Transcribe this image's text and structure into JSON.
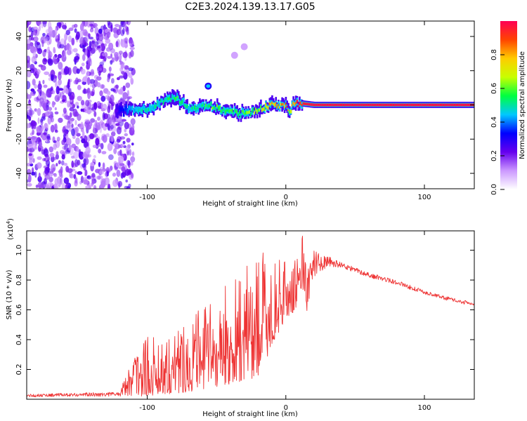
{
  "figure": {
    "title": "C2E3.2024.139.13.17.G05"
  },
  "chart_data": [
    {
      "type": "heatmap",
      "xlabel": "Height of straight line (km)",
      "ylabel": "Frequency (Hz)",
      "xlim": [
        -187,
        136
      ],
      "ylim": [
        -49,
        49
      ],
      "x_ticks": [
        -100,
        0,
        100
      ],
      "y_ticks": [
        -40,
        -20,
        0,
        20,
        40
      ],
      "colorbar": {
        "label": "Normalized spectral amplitude",
        "range": [
          0,
          1
        ],
        "ticks": [
          "0.0",
          "0.2",
          "0.4",
          "0.6",
          "0.8"
        ],
        "colors": [
          "#ffffff",
          "#cc99ff",
          "#6600ee",
          "#0000ff",
          "#00c8ff",
          "#00ff40",
          "#c8ff00",
          "#ffcc00",
          "#ff4400",
          "#ff0055"
        ]
      },
      "noise_region_x": [
        -187,
        -114
      ],
      "ridge": {
        "x": [
          -123,
          -110,
          -100,
          -90,
          -80,
          -75,
          -70,
          -60,
          -55,
          -50,
          -40,
          -35,
          -30,
          -20,
          -10,
          -5,
          0,
          2,
          5,
          10,
          20,
          40,
          60,
          80,
          100,
          120,
          136
        ],
        "freq": [
          -3,
          -3,
          -2,
          2,
          4,
          2,
          -2,
          -1,
          0,
          -2,
          -4,
          -5,
          -5,
          -3,
          0,
          0,
          0,
          -4,
          0,
          1,
          0,
          0,
          0,
          0,
          0,
          0,
          0
        ],
        "amplitude": [
          0.25,
          0.45,
          0.5,
          0.5,
          0.55,
          0.5,
          0.5,
          0.55,
          0.6,
          0.6,
          0.55,
          0.55,
          0.6,
          0.65,
          0.8,
          0.85,
          0.9,
          0.7,
          0.9,
          0.95,
          0.97,
          0.97,
          0.97,
          0.97,
          0.97,
          0.97,
          0.97
        ]
      },
      "blobs": [
        {
          "x": -56,
          "freq": 11,
          "amplitude": 0.3
        },
        {
          "x": -37,
          "freq": 29,
          "amplitude": 0.1
        },
        {
          "x": -30,
          "freq": 34,
          "amplitude": 0.1
        }
      ]
    },
    {
      "type": "line",
      "xlabel": "Height of straight line (km)",
      "ylabel": "SNR (10 * v/v)",
      "y_scale_label": "(x10",
      "y_scale_exp": "4",
      "y_scale_close": ")",
      "xlim": [
        -187,
        136
      ],
      "ylim": [
        0,
        1.13
      ],
      "x_ticks": [
        -100,
        0,
        100
      ],
      "y_ticks": [
        0.2,
        0.4,
        0.6,
        0.8,
        1.0
      ],
      "y_tick_labels": [
        "0.2",
        "0.4",
        "0.6",
        "0.8",
        "1.0"
      ],
      "color": "#ee3333",
      "envelope": {
        "x": [
          -187,
          -120,
          -106,
          -90,
          -70,
          -50,
          -30,
          -20,
          -10,
          0,
          10,
          12,
          15,
          20,
          30,
          40,
          60,
          80,
          100,
          120,
          136
        ],
        "low": [
          0.015,
          0.02,
          0.02,
          0.03,
          0.05,
          0.08,
          0.12,
          0.15,
          0.35,
          0.55,
          0.6,
          0.55,
          0.4,
          0.72,
          0.85,
          0.86,
          0.8,
          0.75,
          0.69,
          0.64,
          0.61
        ],
        "high": [
          0.035,
          0.05,
          0.4,
          0.45,
          0.55,
          0.7,
          0.9,
          1.04,
          0.95,
          0.92,
          0.95,
          1.12,
          0.9,
          1.0,
          0.96,
          0.92,
          0.85,
          0.8,
          0.73,
          0.68,
          0.65
        ]
      }
    }
  ]
}
